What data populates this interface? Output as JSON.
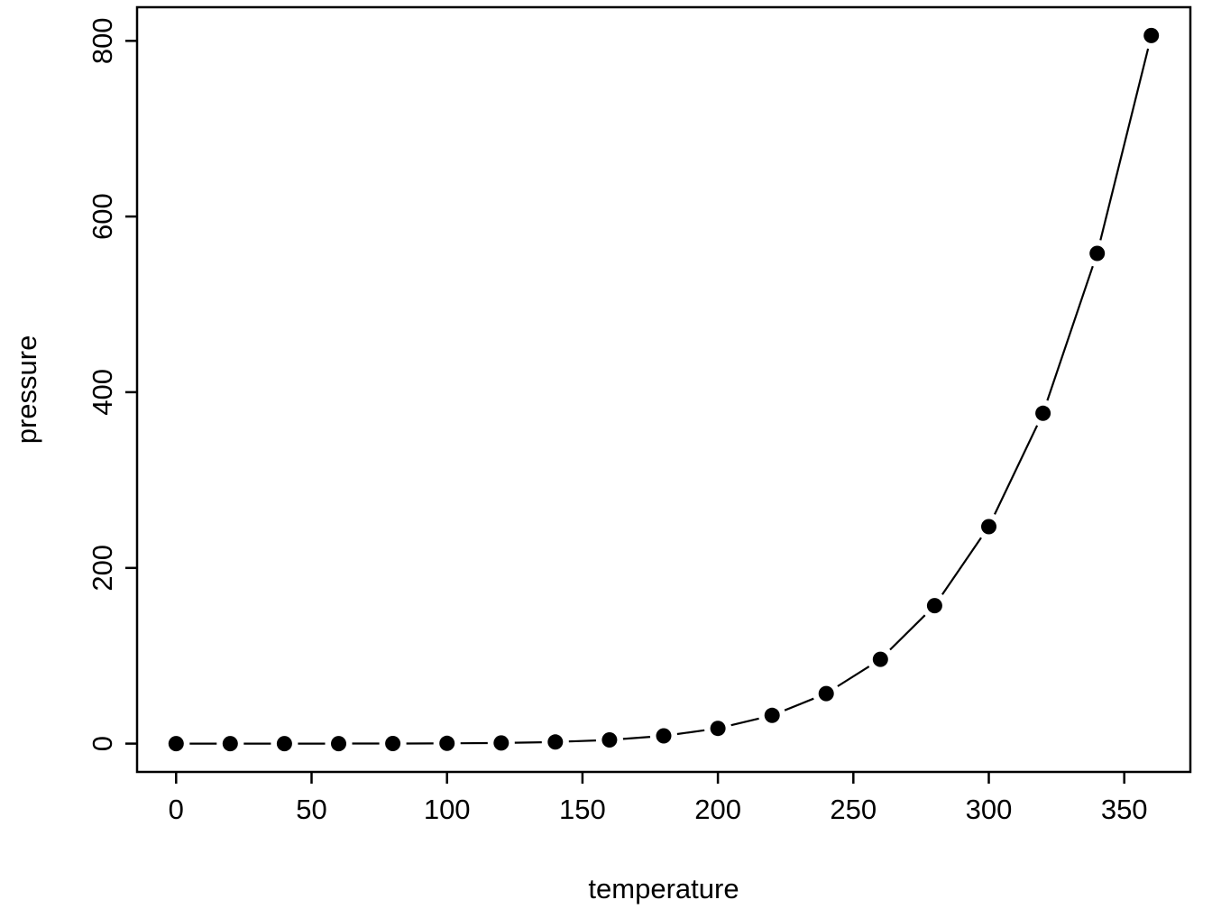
{
  "figure": {
    "background_color": "#ffffff",
    "foreground_color": "#000000"
  },
  "chart_data": {
    "type": "line",
    "plot_style": "filled points connected by line segments with gaps (R base plot, type='b', pch=19)",
    "title": "",
    "xlabel": "temperature",
    "ylabel": "pressure",
    "x": [
      0,
      20,
      40,
      60,
      80,
      100,
      120,
      140,
      160,
      180,
      200,
      220,
      240,
      260,
      280,
      300,
      320,
      340,
      360
    ],
    "y": [
      0.0002,
      0.0012,
      0.006,
      0.03,
      0.09,
      0.27,
      0.75,
      1.85,
      4.2,
      8.8,
      17.3,
      32.1,
      57.0,
      96.0,
      157.0,
      247.0,
      376.0,
      558.0,
      806.0
    ],
    "x_ticks": [
      0,
      50,
      100,
      150,
      200,
      250,
      300,
      350
    ],
    "y_ticks": [
      0,
      200,
      400,
      600,
      800
    ],
    "xlim": [
      -14.4,
      374.4
    ],
    "ylim": [
      -32.24,
      838.24
    ],
    "grid": false,
    "legend": false,
    "box": true,
    "point_color": "#000000",
    "line_color": "#000000"
  }
}
